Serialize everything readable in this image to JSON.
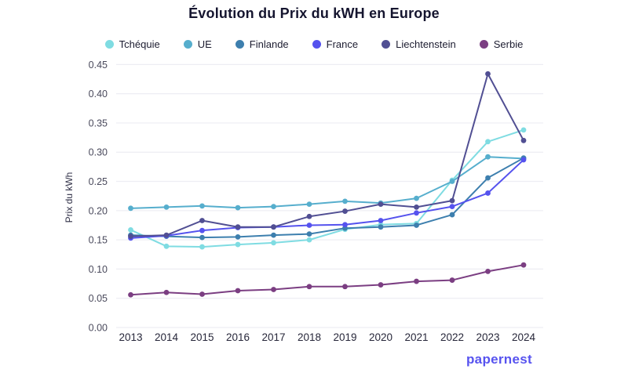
{
  "title": "Évolution du Prix du kWH en Europe",
  "logo_text": "papernest",
  "colors": {
    "background": "#ffffff",
    "gridline": "#ededf3",
    "title_text": "#15152f",
    "tick_text": "#4a4a5c",
    "year_text": "#27273a",
    "logo": "#5753ef"
  },
  "chart_data": {
    "type": "line",
    "title": "Évolution du Prix du kWH en Europe",
    "xlabel": "",
    "ylabel": "Prix du kWh",
    "x": [
      2013,
      2014,
      2015,
      2016,
      2017,
      2018,
      2019,
      2020,
      2021,
      2022,
      2023,
      2024
    ],
    "ylim": [
      0,
      0.45
    ],
    "yticks": [
      0.0,
      0.05,
      0.1,
      0.15,
      0.2,
      0.25,
      0.3,
      0.35,
      0.4,
      0.45
    ],
    "grid": true,
    "legend_position": "top",
    "series": [
      {
        "name": "Tchéquie",
        "color": "#7fdce2",
        "values": [
          0.167,
          0.139,
          0.138,
          0.142,
          0.145,
          0.15,
          0.168,
          0.176,
          0.178,
          0.252,
          0.318,
          0.338
        ]
      },
      {
        "name": "UE",
        "color": "#56aecd",
        "values": [
          0.204,
          0.206,
          0.208,
          0.205,
          0.207,
          0.211,
          0.216,
          0.213,
          0.221,
          0.25,
          0.292,
          0.289
        ]
      },
      {
        "name": "Finlande",
        "color": "#3d7fae",
        "values": [
          0.158,
          0.156,
          0.154,
          0.155,
          0.158,
          0.16,
          0.17,
          0.172,
          0.175,
          0.193,
          0.256,
          0.29
        ]
      },
      {
        "name": "France",
        "color": "#5552ee",
        "values": [
          0.153,
          0.157,
          0.166,
          0.171,
          0.172,
          0.175,
          0.176,
          0.183,
          0.196,
          0.207,
          0.23,
          0.287
        ]
      },
      {
        "name": "Liechtenstein",
        "color": "#514f93",
        "values": [
          0.156,
          0.158,
          0.183,
          0.172,
          0.172,
          0.19,
          0.199,
          0.211,
          0.206,
          0.217,
          0.434,
          0.32
        ]
      },
      {
        "name": "Serbie",
        "color": "#7b3e82",
        "values": [
          0.056,
          0.06,
          0.057,
          0.063,
          0.065,
          0.07,
          0.07,
          0.073,
          0.079,
          0.081,
          0.096,
          0.107
        ]
      }
    ]
  }
}
